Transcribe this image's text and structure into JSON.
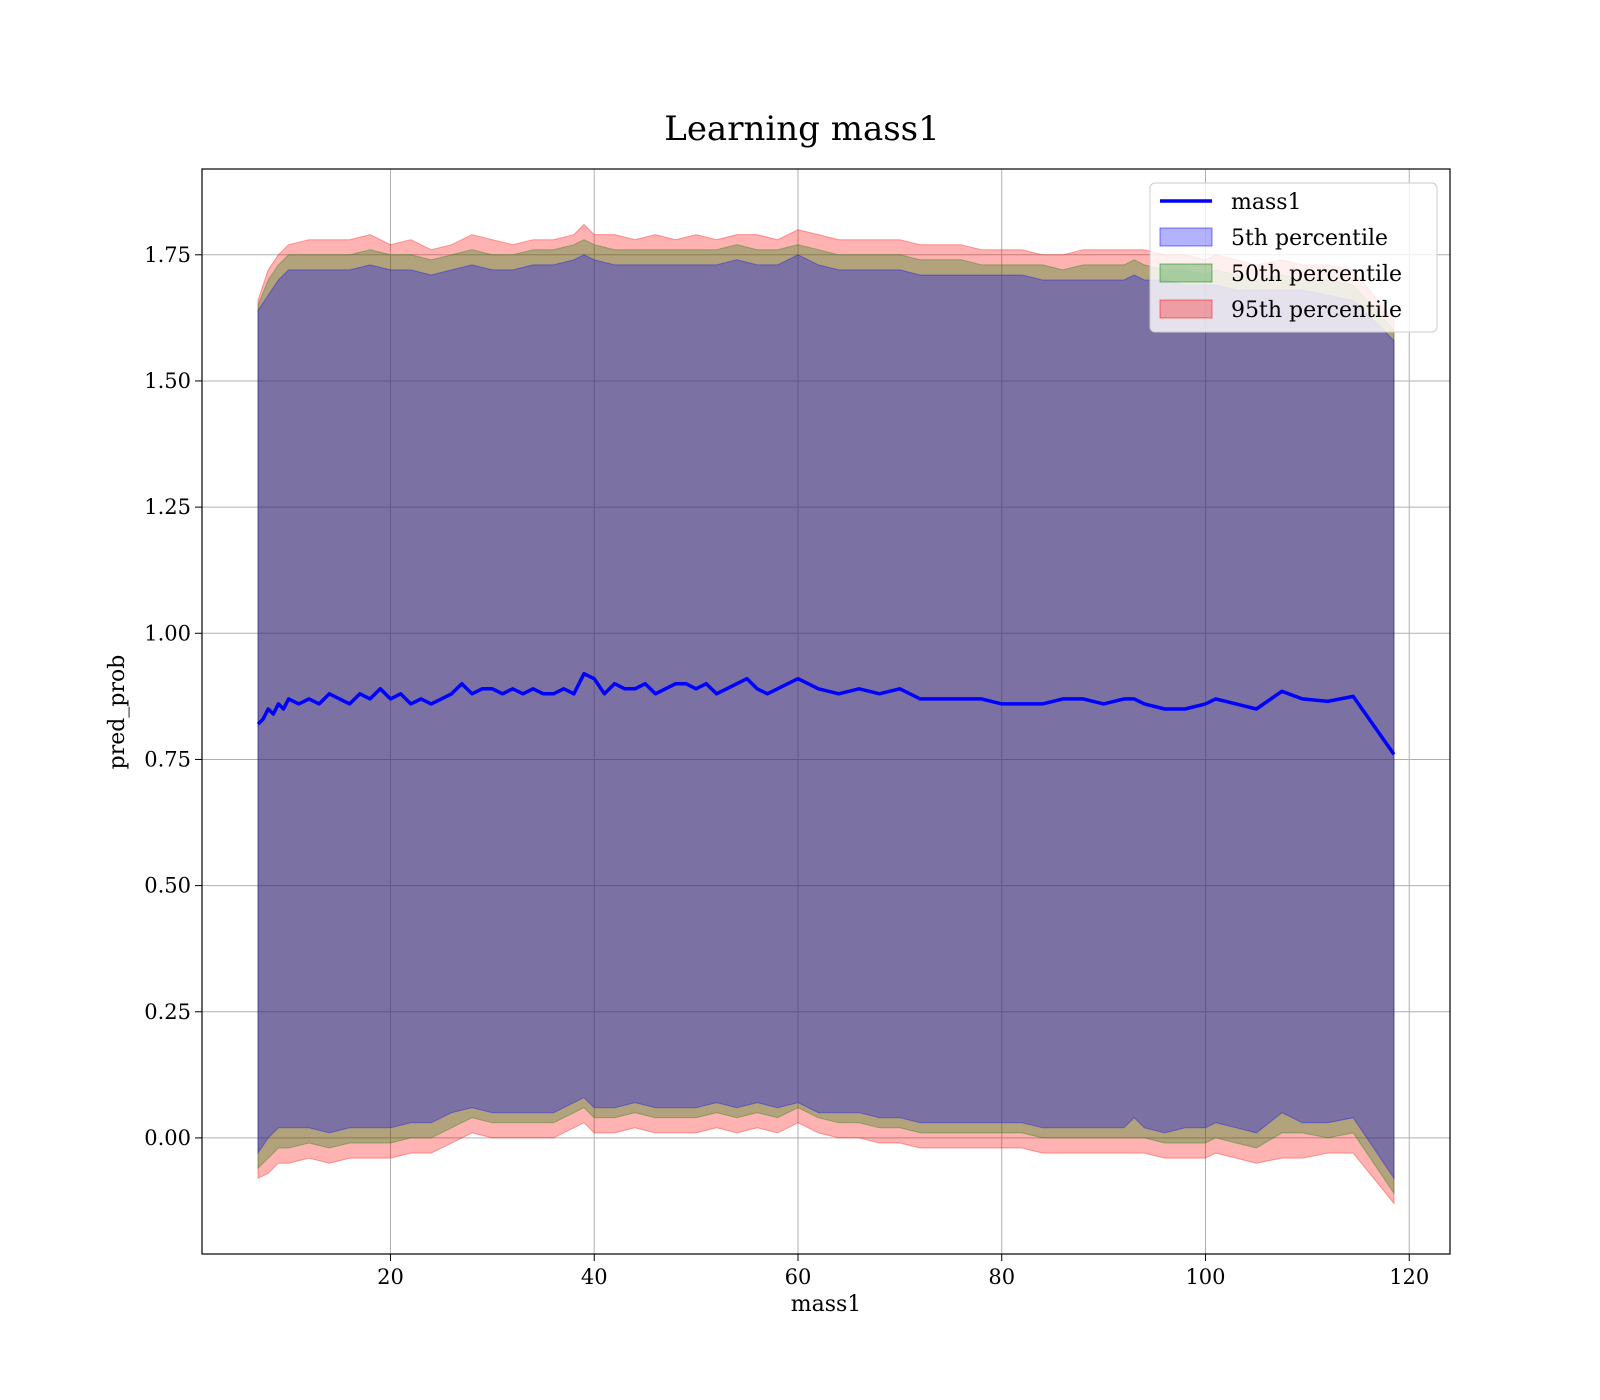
{
  "chart_data": {
    "type": "line",
    "title": "Learning mass1",
    "xlabel": "mass1",
    "ylabel": "pred_prob",
    "xlim": [
      1.5,
      124
    ],
    "ylim": [
      -0.23,
      1.92
    ],
    "xticks": [
      20,
      40,
      60,
      80,
      100,
      120
    ],
    "yticks": [
      0.0,
      0.25,
      0.5,
      0.75,
      1.0,
      1.25,
      1.5,
      1.75
    ],
    "ytick_labels": [
      "0.00",
      "0.25",
      "0.50",
      "0.75",
      "1.00",
      "1.25",
      "1.50",
      "1.75"
    ],
    "grid": true,
    "legend_position": "top-right",
    "legend": [
      "mass1",
      "5th percentile",
      "50th percentile",
      "95th percentile"
    ],
    "colors": {
      "line": "#0000ff",
      "p5": "#0000ff",
      "p50": "#008000",
      "p95": "#ff0000"
    },
    "series": [
      {
        "name": "mass1",
        "x": [
          7,
          7.5,
          8,
          8.5,
          9,
          9.5,
          10,
          11,
          12,
          13,
          14,
          15,
          16,
          17,
          18,
          19,
          20,
          21,
          22,
          23,
          24,
          25,
          26,
          27,
          28,
          29,
          30,
          31,
          32,
          33,
          34,
          35,
          36,
          37,
          38,
          39,
          40,
          41,
          42,
          43,
          44,
          45,
          46,
          47,
          48,
          49,
          50,
          51,
          52,
          53,
          54,
          55,
          56,
          57,
          58,
          59,
          60,
          61,
          62,
          64,
          66,
          68,
          70,
          72,
          74,
          76,
          78,
          80,
          82,
          84,
          86,
          88,
          90,
          92,
          93,
          94,
          96,
          98,
          100,
          101,
          103,
          105,
          107.5,
          109.5,
          112,
          114.5,
          118.5
        ],
        "y": [
          0.82,
          0.83,
          0.85,
          0.84,
          0.86,
          0.85,
          0.87,
          0.86,
          0.87,
          0.86,
          0.88,
          0.87,
          0.86,
          0.88,
          0.87,
          0.89,
          0.87,
          0.88,
          0.86,
          0.87,
          0.86,
          0.87,
          0.88,
          0.9,
          0.88,
          0.89,
          0.89,
          0.88,
          0.89,
          0.88,
          0.89,
          0.88,
          0.88,
          0.89,
          0.88,
          0.92,
          0.91,
          0.88,
          0.9,
          0.89,
          0.89,
          0.9,
          0.88,
          0.89,
          0.9,
          0.9,
          0.89,
          0.9,
          0.88,
          0.89,
          0.9,
          0.91,
          0.89,
          0.88,
          0.89,
          0.9,
          0.91,
          0.9,
          0.89,
          0.88,
          0.89,
          0.88,
          0.89,
          0.87,
          0.87,
          0.87,
          0.87,
          0.86,
          0.86,
          0.86,
          0.87,
          0.87,
          0.86,
          0.87,
          0.87,
          0.86,
          0.85,
          0.85,
          0.86,
          0.87,
          0.86,
          0.85,
          0.885,
          0.87,
          0.865,
          0.875,
          0.76
        ]
      },
      {
        "name": "95th percentile",
        "x": [
          7,
          8,
          9,
          10,
          12,
          14,
          16,
          18,
          20,
          22,
          24,
          26,
          28,
          30,
          32,
          34,
          36,
          38,
          39,
          40,
          42,
          44,
          46,
          48,
          50,
          52,
          54,
          56,
          58,
          60,
          62,
          64,
          66,
          68,
          70,
          72,
          74,
          76,
          78,
          80,
          82,
          84,
          86,
          88,
          90,
          92,
          93,
          94,
          96,
          98,
          100,
          101,
          103,
          105,
          107.5,
          109.5,
          112,
          114.5,
          118.5
        ],
        "upper": [
          1.66,
          1.72,
          1.75,
          1.77,
          1.78,
          1.78,
          1.78,
          1.79,
          1.77,
          1.78,
          1.76,
          1.77,
          1.79,
          1.78,
          1.77,
          1.78,
          1.78,
          1.79,
          1.81,
          1.79,
          1.79,
          1.78,
          1.79,
          1.78,
          1.79,
          1.78,
          1.79,
          1.79,
          1.78,
          1.8,
          1.79,
          1.78,
          1.78,
          1.78,
          1.78,
          1.77,
          1.77,
          1.77,
          1.76,
          1.76,
          1.76,
          1.75,
          1.75,
          1.76,
          1.76,
          1.76,
          1.76,
          1.76,
          1.75,
          1.75,
          1.74,
          1.75,
          1.74,
          1.73,
          1.74,
          1.73,
          1.73,
          1.72,
          1.62
        ],
        "lower": [
          -0.08,
          -0.07,
          -0.05,
          -0.05,
          -0.04,
          -0.05,
          -0.04,
          -0.04,
          -0.04,
          -0.03,
          -0.03,
          -0.01,
          0.01,
          0.0,
          0.0,
          0.0,
          0.0,
          0.02,
          0.03,
          0.01,
          0.01,
          0.02,
          0.01,
          0.01,
          0.01,
          0.02,
          0.01,
          0.02,
          0.01,
          0.03,
          0.01,
          0.0,
          0.0,
          -0.01,
          -0.01,
          -0.02,
          -0.02,
          -0.02,
          -0.02,
          -0.02,
          -0.02,
          -0.03,
          -0.03,
          -0.03,
          -0.03,
          -0.03,
          -0.03,
          -0.03,
          -0.04,
          -0.04,
          -0.04,
          -0.03,
          -0.04,
          -0.05,
          -0.04,
          -0.04,
          -0.03,
          -0.03,
          -0.13
        ]
      },
      {
        "name": "50th percentile",
        "x": [
          7,
          8,
          9,
          10,
          12,
          14,
          16,
          18,
          20,
          22,
          24,
          26,
          28,
          30,
          32,
          34,
          36,
          38,
          39,
          40,
          42,
          44,
          46,
          48,
          50,
          52,
          54,
          56,
          58,
          60,
          62,
          64,
          66,
          68,
          70,
          72,
          74,
          76,
          78,
          80,
          82,
          84,
          86,
          88,
          90,
          92,
          93,
          94,
          96,
          98,
          100,
          101,
          103,
          105,
          107.5,
          109.5,
          112,
          114.5,
          118.5
        ],
        "upper": [
          1.65,
          1.7,
          1.73,
          1.75,
          1.75,
          1.75,
          1.75,
          1.76,
          1.75,
          1.75,
          1.74,
          1.75,
          1.76,
          1.75,
          1.75,
          1.76,
          1.76,
          1.77,
          1.78,
          1.77,
          1.76,
          1.76,
          1.76,
          1.76,
          1.76,
          1.76,
          1.77,
          1.76,
          1.76,
          1.77,
          1.76,
          1.75,
          1.75,
          1.75,
          1.75,
          1.74,
          1.74,
          1.74,
          1.73,
          1.73,
          1.73,
          1.73,
          1.72,
          1.73,
          1.73,
          1.73,
          1.74,
          1.73,
          1.72,
          1.72,
          1.71,
          1.72,
          1.71,
          1.7,
          1.71,
          1.7,
          1.7,
          1.69,
          1.6
        ],
        "lower": [
          -0.06,
          -0.04,
          -0.02,
          -0.02,
          -0.01,
          -0.02,
          -0.01,
          -0.01,
          -0.01,
          0.0,
          0.0,
          0.02,
          0.04,
          0.03,
          0.03,
          0.03,
          0.03,
          0.05,
          0.06,
          0.04,
          0.04,
          0.05,
          0.04,
          0.04,
          0.04,
          0.05,
          0.04,
          0.05,
          0.04,
          0.06,
          0.04,
          0.03,
          0.03,
          0.02,
          0.02,
          0.01,
          0.01,
          0.01,
          0.01,
          0.01,
          0.01,
          0.0,
          0.0,
          0.0,
          0.0,
          0.0,
          0.0,
          0.0,
          -0.01,
          -0.01,
          -0.01,
          0.0,
          -0.01,
          -0.02,
          0.01,
          0.01,
          0.0,
          0.01,
          -0.11
        ]
      },
      {
        "name": "5th percentile",
        "x": [
          7,
          8,
          9,
          10,
          12,
          14,
          16,
          18,
          20,
          22,
          24,
          26,
          28,
          30,
          32,
          34,
          36,
          38,
          39,
          40,
          42,
          44,
          46,
          48,
          50,
          52,
          54,
          56,
          58,
          60,
          62,
          64,
          66,
          68,
          70,
          72,
          74,
          76,
          78,
          80,
          82,
          84,
          86,
          88,
          90,
          92,
          93,
          94,
          96,
          98,
          100,
          101,
          103,
          105,
          107.5,
          109.5,
          112,
          114.5,
          118.5
        ],
        "upper": [
          1.64,
          1.67,
          1.7,
          1.72,
          1.72,
          1.72,
          1.72,
          1.73,
          1.72,
          1.72,
          1.71,
          1.72,
          1.73,
          1.72,
          1.72,
          1.73,
          1.73,
          1.74,
          1.75,
          1.74,
          1.73,
          1.73,
          1.73,
          1.73,
          1.73,
          1.73,
          1.74,
          1.73,
          1.73,
          1.75,
          1.73,
          1.72,
          1.72,
          1.72,
          1.72,
          1.71,
          1.71,
          1.71,
          1.71,
          1.71,
          1.71,
          1.7,
          1.7,
          1.7,
          1.7,
          1.7,
          1.71,
          1.7,
          1.7,
          1.69,
          1.69,
          1.69,
          1.68,
          1.68,
          1.68,
          1.68,
          1.67,
          1.66,
          1.58
        ],
        "lower": [
          -0.03,
          0.0,
          0.02,
          0.02,
          0.02,
          0.01,
          0.02,
          0.02,
          0.02,
          0.03,
          0.03,
          0.05,
          0.06,
          0.05,
          0.05,
          0.05,
          0.05,
          0.07,
          0.08,
          0.06,
          0.06,
          0.07,
          0.06,
          0.06,
          0.06,
          0.07,
          0.06,
          0.07,
          0.06,
          0.07,
          0.05,
          0.05,
          0.05,
          0.04,
          0.04,
          0.03,
          0.03,
          0.03,
          0.03,
          0.03,
          0.03,
          0.02,
          0.02,
          0.02,
          0.02,
          0.02,
          0.04,
          0.02,
          0.01,
          0.02,
          0.02,
          0.03,
          0.02,
          0.01,
          0.05,
          0.03,
          0.03,
          0.04,
          -0.08
        ]
      }
    ]
  }
}
